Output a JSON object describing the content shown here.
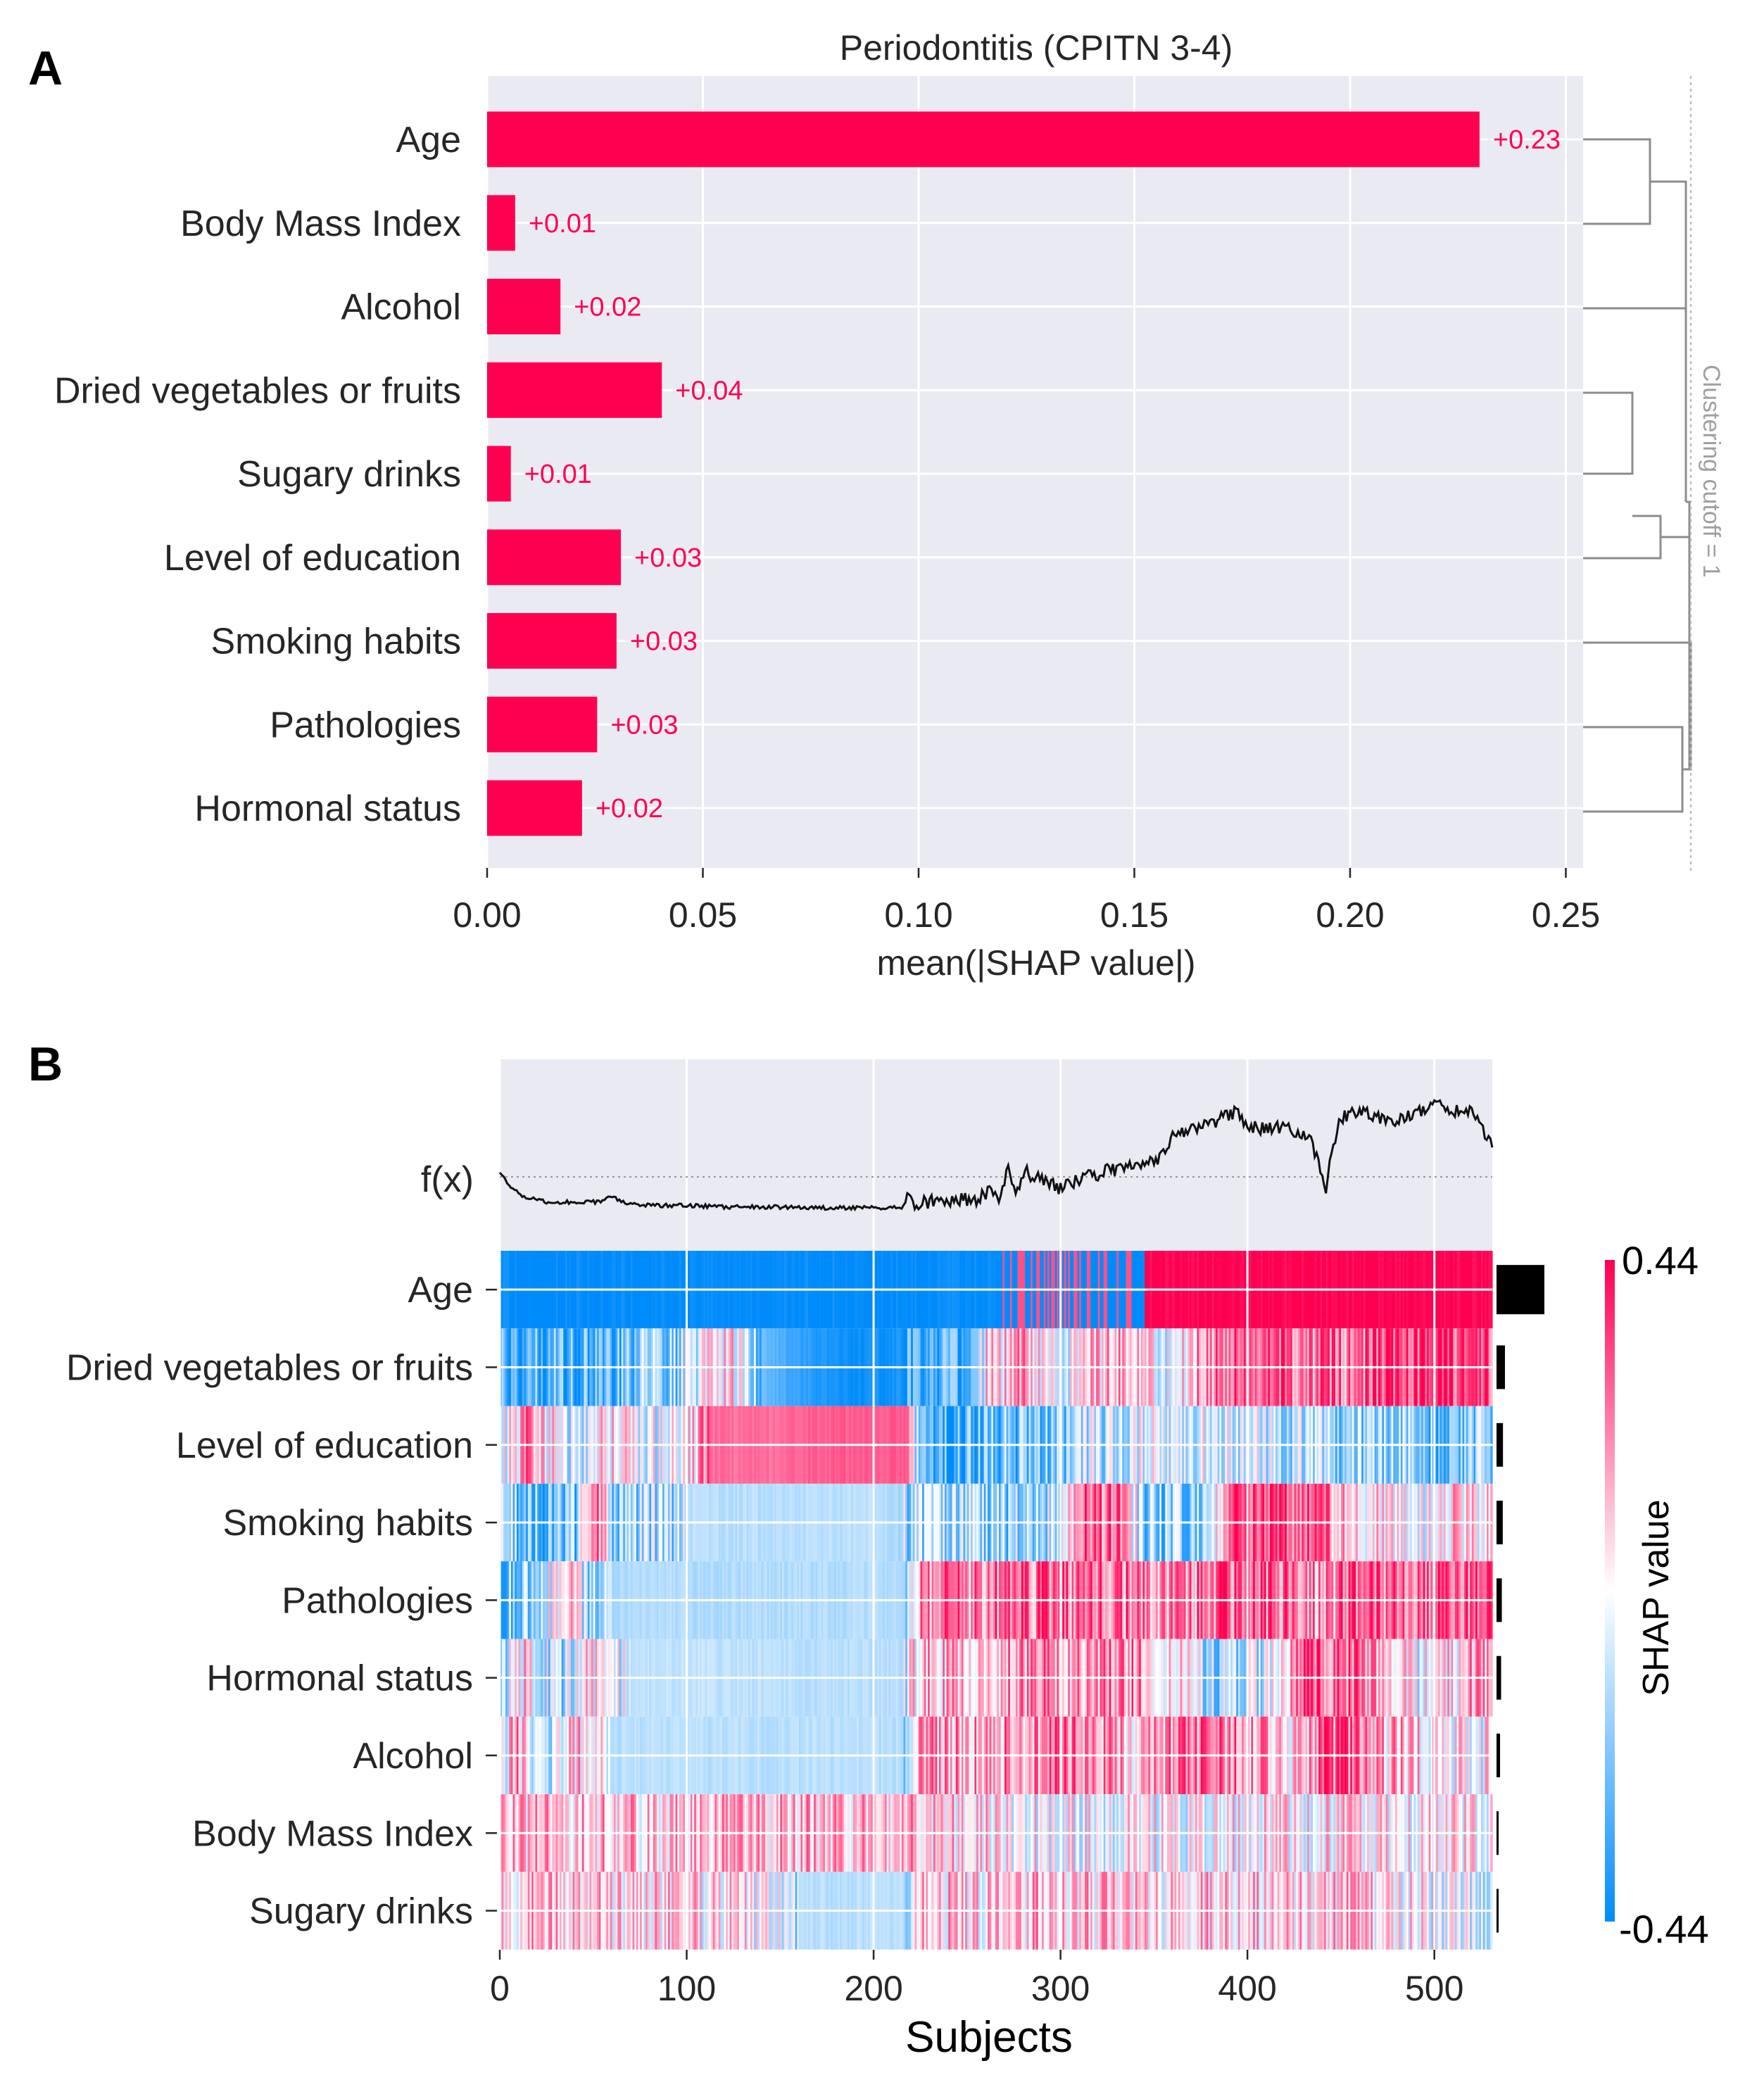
{
  "panels": {
    "a_letter": "A",
    "b_letter": "B"
  },
  "chart_data": [
    {
      "type": "bar",
      "orientation": "horizontal",
      "title": "Periodontitis (CPITN 3-4)",
      "xlabel": "mean(|SHAP value|)",
      "ylabel": "",
      "xlim": [
        0,
        0.254
      ],
      "xticks": [
        "0.00",
        "0.05",
        "0.10",
        "0.15",
        "0.20",
        "0.25"
      ],
      "xtick_values": [
        0,
        0.05,
        0.1,
        0.15,
        0.2,
        0.25
      ],
      "categories": [
        "Age",
        "Body Mass Index",
        "Alcohol",
        "Dried vegetables or fruits",
        "Sugary drinks",
        "Level of education",
        "Smoking habits",
        "Pathologies",
        "Hormonal status"
      ],
      "values": [
        0.23,
        0.0065,
        0.017,
        0.0405,
        0.0055,
        0.031,
        0.03,
        0.0255,
        0.022
      ],
      "value_labels": [
        "+0.23",
        "+0.01",
        "+0.02",
        "+0.04",
        "+0.01",
        "+0.03",
        "+0.03",
        "+0.03",
        "+0.02"
      ],
      "bar_color": "#ff0051",
      "grid": true,
      "annotation": "Clustering cutoff = 1"
    },
    {
      "type": "heatmap",
      "xlabel": "Subjects",
      "xlim": [
        0,
        531
      ],
      "xticks": [
        "0",
        "100",
        "200",
        "300",
        "400",
        "500"
      ],
      "xtick_values": [
        0,
        100,
        200,
        300,
        400,
        500
      ],
      "n_subjects": 531,
      "fx_label": "f(x)",
      "features": [
        "Age",
        "Dried vegetables or fruits",
        "Level of education",
        "Smoking habits",
        "Pathologies",
        "Hormonal status",
        "Alcohol",
        "Body Mass Index",
        "Sugary drinks"
      ],
      "importance": [
        0.23,
        0.0405,
        0.031,
        0.03,
        0.0255,
        0.022,
        0.017,
        0.0065,
        0.0055
      ],
      "colorbar": {
        "label": "SHAP value",
        "min": "-0.44",
        "max": "0.44",
        "vmin": -0.44,
        "vmax": 0.44
      },
      "colors": {
        "negative": "#008bfb",
        "positive": "#ff0051",
        "neutral": "#ffffff"
      },
      "fx_profile": [
        [
          0,
          0.05
        ],
        [
          5,
          -0.1
        ],
        [
          12,
          -0.25
        ],
        [
          25,
          -0.32
        ],
        [
          40,
          -0.33
        ],
        [
          55,
          -0.32
        ],
        [
          60,
          -0.24
        ],
        [
          65,
          -0.33
        ],
        [
          80,
          -0.37
        ],
        [
          100,
          -0.37
        ],
        [
          120,
          -0.39
        ],
        [
          150,
          -0.39
        ],
        [
          175,
          -0.4
        ],
        [
          200,
          -0.4
        ],
        [
          215,
          -0.39
        ],
        [
          218,
          -0.25
        ],
        [
          222,
          -0.35
        ],
        [
          240,
          -0.3
        ],
        [
          255,
          -0.28
        ],
        [
          262,
          -0.2
        ],
        [
          268,
          -0.28
        ],
        [
          272,
          0.1
        ],
        [
          276,
          -0.15
        ],
        [
          282,
          0.05
        ],
        [
          290,
          -0.05
        ],
        [
          300,
          -0.15
        ],
        [
          312,
          -0.02
        ],
        [
          325,
          0.08
        ],
        [
          340,
          0.15
        ],
        [
          352,
          0.2
        ],
        [
          360,
          0.5
        ],
        [
          368,
          0.62
        ],
        [
          380,
          0.68
        ],
        [
          393,
          0.82
        ],
        [
          405,
          0.62
        ],
        [
          420,
          0.65
        ],
        [
          432,
          0.55
        ],
        [
          438,
          0.2
        ],
        [
          442,
          -0.2
        ],
        [
          445,
          0.3
        ],
        [
          450,
          0.75
        ],
        [
          458,
          0.85
        ],
        [
          468,
          0.8
        ],
        [
          478,
          0.72
        ],
        [
          490,
          0.85
        ],
        [
          500,
          0.92
        ],
        [
          510,
          0.86
        ],
        [
          520,
          0.85
        ],
        [
          525,
          0.65
        ],
        [
          531,
          0.45
        ]
      ],
      "rows": {
        "Age": [
          [
            0,
            -0.44
          ],
          [
            270,
            -0.44
          ],
          [
            276,
            0.05
          ],
          [
            282,
            -0.4
          ],
          [
            300,
            -0.35
          ],
          [
            320,
            -0.3
          ],
          [
            330,
            0.35
          ],
          [
            345,
            0.44
          ],
          [
            531,
            0.44
          ]
        ],
        "Dried vegetables or fruits": [
          [
            0,
            -0.3
          ],
          [
            40,
            -0.32
          ],
          [
            60,
            -0.28
          ],
          [
            80,
            -0.2
          ],
          [
            95,
            -0.18
          ],
          [
            100,
            -0.05
          ],
          [
            125,
            0.05
          ],
          [
            140,
            -0.25
          ],
          [
            160,
            -0.35
          ],
          [
            185,
            -0.42
          ],
          [
            215,
            -0.4
          ],
          [
            225,
            -0.25
          ],
          [
            250,
            -0.3
          ],
          [
            260,
            0.05
          ],
          [
            285,
            0.15
          ],
          [
            300,
            -0.1
          ],
          [
            330,
            0.2
          ],
          [
            360,
            -0.05
          ],
          [
            380,
            0.25
          ],
          [
            420,
            0.3
          ],
          [
            450,
            0.2
          ],
          [
            480,
            0.38
          ],
          [
            531,
            0.32
          ]
        ],
        "Level of education": [
          [
            0,
            -0.1
          ],
          [
            15,
            0.2
          ],
          [
            35,
            -0.1
          ],
          [
            60,
            0.05
          ],
          [
            75,
            -0.05
          ],
          [
            90,
            -0.02
          ],
          [
            100,
            0.02
          ],
          [
            112,
            0.25
          ],
          [
            145,
            0.25
          ],
          [
            175,
            0.28
          ],
          [
            218,
            0.28
          ],
          [
            225,
            -0.3
          ],
          [
            260,
            -0.25
          ],
          [
            290,
            -0.22
          ],
          [
            320,
            -0.1
          ],
          [
            350,
            -0.05
          ],
          [
            390,
            -0.08
          ],
          [
            420,
            -0.12
          ],
          [
            460,
            -0.2
          ],
          [
            500,
            -0.22
          ],
          [
            531,
            -0.18
          ]
        ],
        "Smoking habits": [
          [
            0,
            0.1
          ],
          [
            10,
            -0.25
          ],
          [
            40,
            -0.25
          ],
          [
            50,
            0.35
          ],
          [
            60,
            -0.2
          ],
          [
            100,
            -0.12
          ],
          [
            150,
            -0.12
          ],
          [
            200,
            -0.12
          ],
          [
            220,
            -0.15
          ],
          [
            270,
            -0.18
          ],
          [
            300,
            -0.12
          ],
          [
            310,
            0.3
          ],
          [
            330,
            0.25
          ],
          [
            345,
            -0.2
          ],
          [
            375,
            -0.15
          ],
          [
            390,
            0.35
          ],
          [
            410,
            0.4
          ],
          [
            430,
            0.3
          ],
          [
            450,
            0.15
          ],
          [
            480,
            -0.05
          ],
          [
            510,
            0.1
          ],
          [
            531,
            0.02
          ]
        ],
        "Pathologies": [
          [
            0,
            -0.22
          ],
          [
            20,
            -0.2
          ],
          [
            35,
            0.2
          ],
          [
            45,
            -0.15
          ],
          [
            80,
            -0.13
          ],
          [
            150,
            -0.13
          ],
          [
            215,
            -0.13
          ],
          [
            225,
            0.2
          ],
          [
            260,
            0.22
          ],
          [
            290,
            0.28
          ],
          [
            330,
            0.25
          ],
          [
            360,
            0.2
          ],
          [
            390,
            0.3
          ],
          [
            420,
            0.25
          ],
          [
            440,
            0.15
          ],
          [
            450,
            0.25
          ],
          [
            480,
            0.28
          ],
          [
            531,
            0.3
          ]
        ],
        "Hormonal status": [
          [
            0,
            -0.15
          ],
          [
            15,
            0.1
          ],
          [
            30,
            -0.18
          ],
          [
            50,
            0.05
          ],
          [
            70,
            -0.12
          ],
          [
            100,
            -0.1
          ],
          [
            150,
            -0.12
          ],
          [
            215,
            -0.12
          ],
          [
            225,
            0.12
          ],
          [
            260,
            0.15
          ],
          [
            300,
            0.18
          ],
          [
            340,
            0.2
          ],
          [
            360,
            0.05
          ],
          [
            380,
            -0.15
          ],
          [
            410,
            -0.1
          ],
          [
            430,
            0.3
          ],
          [
            460,
            0.25
          ],
          [
            490,
            -0.05
          ],
          [
            531,
            0.2
          ]
        ],
        "Alcohol": [
          [
            0,
            -0.08
          ],
          [
            8,
            0.15
          ],
          [
            25,
            -0.1
          ],
          [
            48,
            0.15
          ],
          [
            60,
            -0.12
          ],
          [
            100,
            -0.12
          ],
          [
            150,
            -0.12
          ],
          [
            215,
            -0.12
          ],
          [
            225,
            0.15
          ],
          [
            270,
            0.2
          ],
          [
            300,
            0.25
          ],
          [
            340,
            0.1
          ],
          [
            360,
            0.2
          ],
          [
            390,
            0.25
          ],
          [
            420,
            0.05
          ],
          [
            450,
            0.3
          ],
          [
            470,
            0.15
          ],
          [
            500,
            0.05
          ],
          [
            531,
            0.0
          ]
        ],
        "Body Mass Index": [
          [
            0,
            0.08
          ],
          [
            50,
            0.1
          ],
          [
            100,
            0.09
          ],
          [
            150,
            0.1
          ],
          [
            200,
            0.12
          ],
          [
            215,
            0.14
          ],
          [
            250,
            0.08
          ],
          [
            290,
            0.0
          ],
          [
            320,
            -0.02
          ],
          [
            350,
            0.02
          ],
          [
            380,
            0.0
          ],
          [
            420,
            0.03
          ],
          [
            460,
            0.05
          ],
          [
            500,
            0.02
          ],
          [
            531,
            0.05
          ]
        ],
        "Sugary drinks": [
          [
            0,
            0.1
          ],
          [
            50,
            0.08
          ],
          [
            100,
            0.05
          ],
          [
            130,
            0.02
          ],
          [
            160,
            -0.12
          ],
          [
            215,
            -0.12
          ],
          [
            225,
            0.1
          ],
          [
            260,
            0.08
          ],
          [
            300,
            0.12
          ],
          [
            350,
            0.06
          ],
          [
            400,
            0.1
          ],
          [
            450,
            0.08
          ],
          [
            500,
            0.0
          ],
          [
            531,
            -0.05
          ]
        ]
      }
    }
  ]
}
